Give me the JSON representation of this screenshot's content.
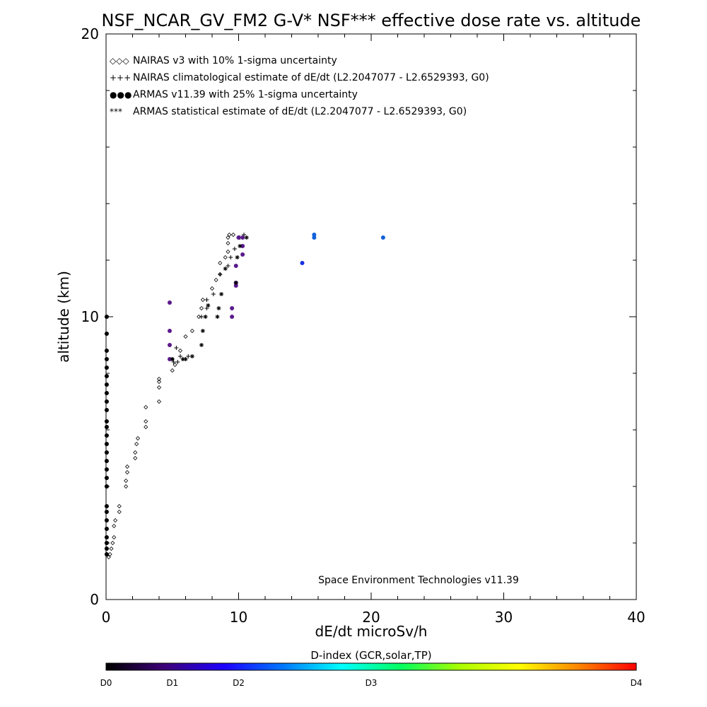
{
  "chart_data": {
    "type": "scatter",
    "title": "NSF_NCAR_GV_FM2 G-V* NSF*** effective dose rate vs. altitude",
    "xlabel": "dE/dt microSv/h",
    "ylabel": "altitude (km)",
    "xlim": [
      0,
      40
    ],
    "ylim": [
      0,
      20
    ],
    "x_ticks": [
      "0",
      "10",
      "20",
      "30",
      "40"
    ],
    "y_ticks": [
      "0",
      "10",
      "20"
    ],
    "grid": false,
    "legend_position": "top-left",
    "credit": "Space Environment Technologies v11.39",
    "legend": [
      {
        "marker": "◇◇◇",
        "label": "NAIRAS v3 with 10% 1-sigma uncertainty"
      },
      {
        "marker": "+++",
        "label": "NAIRAS climatological estimate of dE/dt (L2.2047077 - L2.6529393, G0)"
      },
      {
        "marker": "●●●",
        "label": "ARMAS v11.39 with 25% 1-sigma uncertainty"
      },
      {
        "marker": "***",
        "label": "ARMAS statistical estimate of dE/dt (L2.2047077 - L2.6529393, G0)"
      }
    ],
    "colorbar": {
      "title": "D-index (GCR,solar,TP)",
      "labels": [
        "D0",
        "D1",
        "D2",
        "D3",
        "D4"
      ],
      "colors": [
        "#000000",
        "#3c0078",
        "#1e00ff",
        "#0077ff",
        "#00ffff",
        "#00ff60",
        "#aaff00",
        "#ffff00",
        "#ff8800",
        "#ff0000"
      ]
    },
    "colors": {
      "D0": "#000000",
      "D1": "#5a1a8c",
      "D2": "#1830e0",
      "D3": "#1060d8"
    },
    "series": [
      {
        "name": "NAIRAS v3 with 10% 1-sigma uncertainty",
        "marker": "diamond",
        "points": [
          [
            0.2,
            1.5
          ],
          [
            0.3,
            1.6
          ],
          [
            0.4,
            1.8
          ],
          [
            0.5,
            2.0
          ],
          [
            0.6,
            2.2
          ],
          [
            0.6,
            2.6
          ],
          [
            0.7,
            2.8
          ],
          [
            1.0,
            3.1
          ],
          [
            1.0,
            3.3
          ],
          [
            1.5,
            4.0
          ],
          [
            1.5,
            4.2
          ],
          [
            1.6,
            4.5
          ],
          [
            1.6,
            4.7
          ],
          [
            2.2,
            5.0
          ],
          [
            2.2,
            5.2
          ],
          [
            2.3,
            5.5
          ],
          [
            2.4,
            5.7
          ],
          [
            3.0,
            6.1
          ],
          [
            3.0,
            6.3
          ],
          [
            3.0,
            6.8
          ],
          [
            4.0,
            7.0
          ],
          [
            4.0,
            7.5
          ],
          [
            4.0,
            7.7
          ],
          [
            4.0,
            7.8
          ],
          [
            5.0,
            8.1
          ],
          [
            5.2,
            8.3
          ],
          [
            5.0,
            8.5
          ],
          [
            5.6,
            8.8
          ],
          [
            6.0,
            9.3
          ],
          [
            6.5,
            9.5
          ],
          [
            7.0,
            10.0
          ],
          [
            7.2,
            10.3
          ],
          [
            7.3,
            10.6
          ],
          [
            8.0,
            11.0
          ],
          [
            8.3,
            11.3
          ],
          [
            8.6,
            11.5
          ],
          [
            8.6,
            11.9
          ],
          [
            9.0,
            12.1
          ],
          [
            9.2,
            12.3
          ],
          [
            9.2,
            12.6
          ],
          [
            9.2,
            12.8
          ],
          [
            9.3,
            12.9
          ],
          [
            9.6,
            12.9
          ],
          [
            10.0,
            12.8
          ]
        ]
      },
      {
        "name": "NAIRAS climatological estimate of dE/dt (L2.2047077 - L2.6529393, G0)",
        "marker": "plus",
        "points": [
          [
            5.1,
            8.4
          ],
          [
            5.4,
            8.4
          ],
          [
            5.3,
            8.9
          ],
          [
            5.6,
            8.6
          ],
          [
            6.2,
            8.6
          ],
          [
            7.2,
            10.0
          ],
          [
            7.6,
            10.3
          ],
          [
            7.6,
            10.6
          ],
          [
            8.1,
            10.8
          ],
          [
            8.6,
            11.5
          ],
          [
            9.2,
            11.8
          ],
          [
            9.4,
            12.1
          ],
          [
            9.7,
            12.4
          ],
          [
            10.1,
            12.8
          ],
          [
            10.4,
            12.9
          ]
        ]
      },
      {
        "name": "ARMAS v11.39 with 25% 1-sigma uncertainty",
        "marker": "dot",
        "points": [
          {
            "x": 0.05,
            "y": 1.6,
            "d": "D0"
          },
          {
            "x": 0.05,
            "y": 1.8,
            "d": "D0"
          },
          {
            "x": 0.05,
            "y": 2.0,
            "d": "D0"
          },
          {
            "x": 0.05,
            "y": 2.2,
            "d": "D0"
          },
          {
            "x": 0.05,
            "y": 2.5,
            "d": "D0"
          },
          {
            "x": 0.05,
            "y": 2.8,
            "d": "D0"
          },
          {
            "x": 0.05,
            "y": 3.1,
            "d": "D0"
          },
          {
            "x": 0.05,
            "y": 3.3,
            "d": "D0"
          },
          {
            "x": 0.05,
            "y": 4.0,
            "d": "D0"
          },
          {
            "x": 0.05,
            "y": 4.3,
            "d": "D0"
          },
          {
            "x": 0.05,
            "y": 4.6,
            "d": "D0"
          },
          {
            "x": 0.05,
            "y": 4.9,
            "d": "D0"
          },
          {
            "x": 0.05,
            "y": 5.2,
            "d": "D0"
          },
          {
            "x": 0.05,
            "y": 5.5,
            "d": "D0"
          },
          {
            "x": 0.05,
            "y": 5.8,
            "d": "D0"
          },
          {
            "x": 0.05,
            "y": 6.1,
            "d": "D0"
          },
          {
            "x": 0.05,
            "y": 6.3,
            "d": "D0"
          },
          {
            "x": 0.05,
            "y": 6.7,
            "d": "D0"
          },
          {
            "x": 0.05,
            "y": 7.0,
            "d": "D0"
          },
          {
            "x": 0.05,
            "y": 7.3,
            "d": "D0"
          },
          {
            "x": 0.05,
            "y": 7.6,
            "d": "D0"
          },
          {
            "x": 0.05,
            "y": 7.9,
            "d": "D0"
          },
          {
            "x": 0.05,
            "y": 8.2,
            "d": "D0"
          },
          {
            "x": 0.05,
            "y": 8.5,
            "d": "D0"
          },
          {
            "x": 0.05,
            "y": 8.8,
            "d": "D0"
          },
          {
            "x": 0.05,
            "y": 9.4,
            "d": "D0"
          },
          {
            "x": 0.05,
            "y": 10.0,
            "d": "D0"
          },
          {
            "x": 4.8,
            "y": 8.5,
            "d": "D1"
          },
          {
            "x": 4.8,
            "y": 9.0,
            "d": "D1"
          },
          {
            "x": 4.8,
            "y": 9.5,
            "d": "D1"
          },
          {
            "x": 4.8,
            "y": 10.5,
            "d": "D1"
          },
          {
            "x": 9.5,
            "y": 10.0,
            "d": "D1"
          },
          {
            "x": 9.5,
            "y": 10.3,
            "d": "D1"
          },
          {
            "x": 9.8,
            "y": 11.1,
            "d": "D1"
          },
          {
            "x": 9.8,
            "y": 11.2,
            "d": "D1"
          },
          {
            "x": 9.8,
            "y": 11.8,
            "d": "D1"
          },
          {
            "x": 10.3,
            "y": 12.2,
            "d": "D1"
          },
          {
            "x": 10.3,
            "y": 12.5,
            "d": "D1"
          },
          {
            "x": 10.0,
            "y": 12.8,
            "d": "D1"
          },
          {
            "x": 10.3,
            "y": 12.8,
            "d": "D1"
          },
          {
            "x": 14.8,
            "y": 11.9,
            "d": "D2"
          },
          {
            "x": 15.7,
            "y": 12.8,
            "d": "D3"
          },
          {
            "x": 15.7,
            "y": 12.9,
            "d": "D3"
          },
          {
            "x": 20.9,
            "y": 12.8,
            "d": "D3"
          }
        ]
      },
      {
        "name": "ARMAS statistical estimate of dE/dt (L2.2047077 - L2.6529393, G0)",
        "marker": "asterisk",
        "points": [
          [
            5.0,
            8.5
          ],
          [
            5.8,
            8.5
          ],
          [
            6.0,
            8.5
          ],
          [
            6.5,
            8.6
          ],
          [
            7.2,
            9.0
          ],
          [
            7.3,
            9.5
          ],
          [
            7.5,
            10.0
          ],
          [
            7.7,
            10.4
          ],
          [
            8.4,
            10.0
          ],
          [
            8.5,
            10.3
          ],
          [
            8.7,
            10.8
          ],
          [
            9.0,
            11.7
          ],
          [
            9.8,
            11.2
          ],
          [
            9.9,
            12.1
          ],
          [
            10.1,
            12.5
          ],
          [
            10.6,
            12.8
          ]
        ]
      }
    ]
  }
}
